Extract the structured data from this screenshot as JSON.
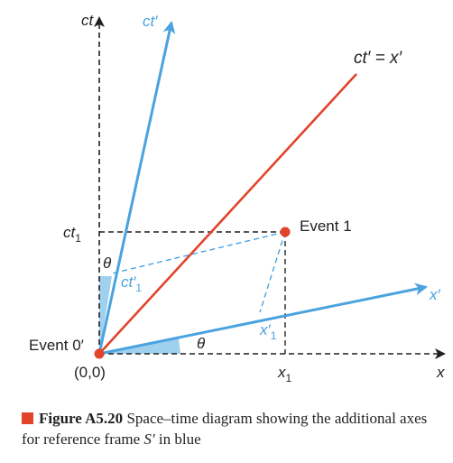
{
  "labels": {
    "ct_axis": "ct",
    "ct_prime_axis": "ct′",
    "line_label": "ct′ = x′",
    "x_axis": "x",
    "x_prime_axis": "x′",
    "ct1": "ct",
    "ct1_sub": "1",
    "x1": "x",
    "x1_sub": "1",
    "ct_prime_1": "ct′",
    "ct_prime_1_sub": "1",
    "x_prime_1": "x′",
    "x_prime_1_sub": "1",
    "theta_top": "θ",
    "theta_bottom": "θ",
    "event1": "Event 1",
    "event0": "Event 0′",
    "origin": "(0,0)"
  },
  "caption": {
    "label": "Figure A5.20",
    "text_before": " Space–time diagram showing the additional axes for reference frame ",
    "frame": "S′",
    "text_after": " in blue"
  },
  "colors": {
    "blue": "#4aa3df",
    "red": "#e1432b",
    "black": "#231f20",
    "wedge": "#9fd0ee"
  }
}
